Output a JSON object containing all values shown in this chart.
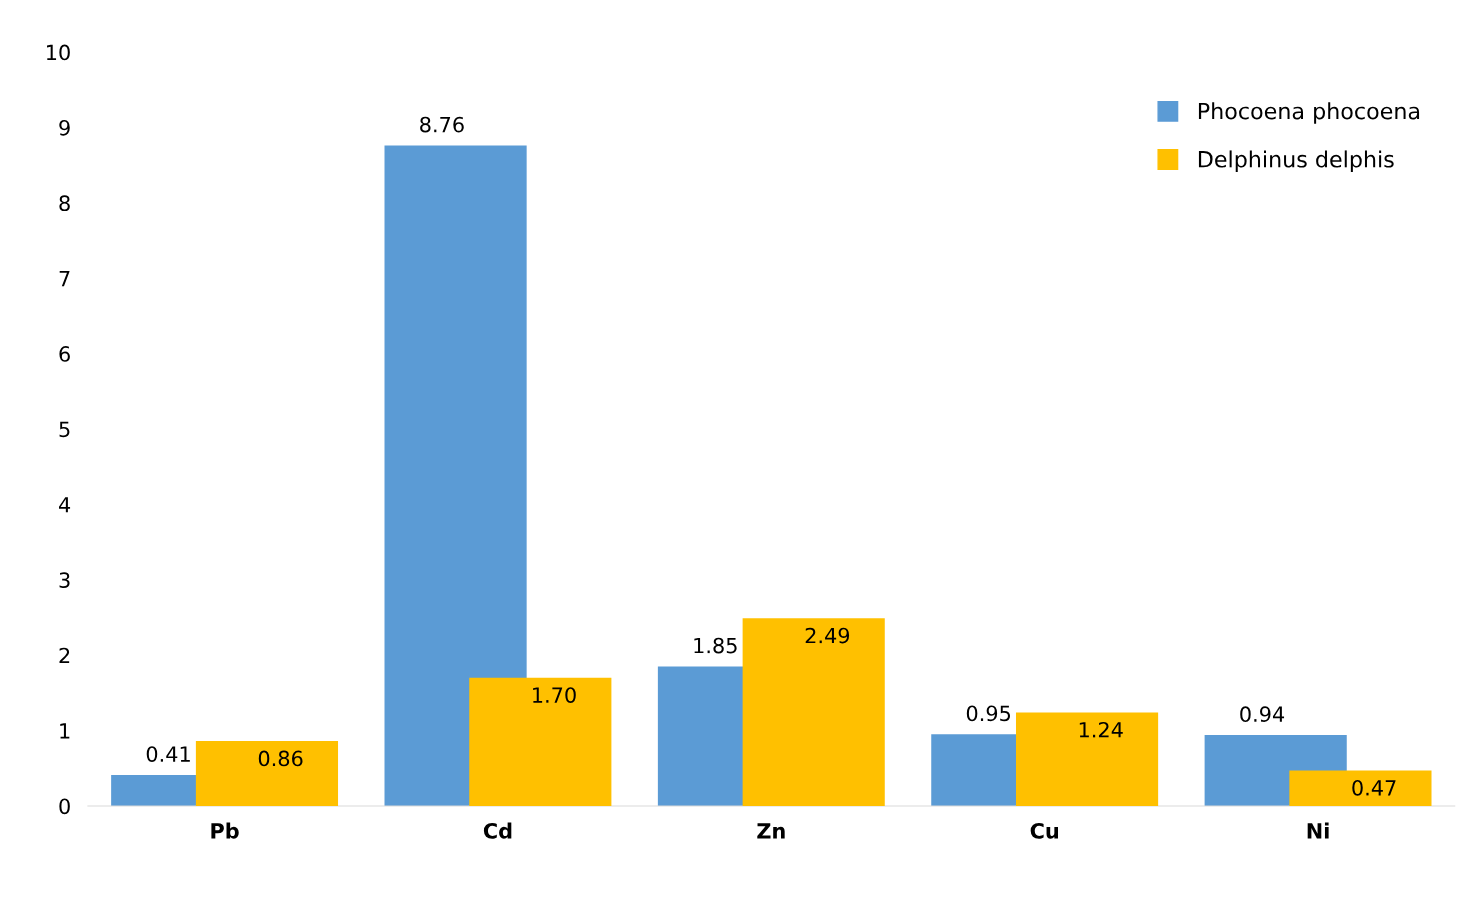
{
  "chart_data": {
    "type": "bar",
    "categories": [
      "Pb",
      "Cd",
      "Zn",
      "Cu",
      "Ni"
    ],
    "series": [
      {
        "name": "Phocoena phocoena",
        "color": "#5b9bd5",
        "values": [
          0.41,
          8.76,
          1.85,
          0.95,
          0.94
        ],
        "value_labels": [
          "0.41",
          "8.76",
          "1.85",
          "0.95",
          "0.94"
        ]
      },
      {
        "name": "Delphinus delphis",
        "color": "#ffc000",
        "values": [
          0.86,
          1.7,
          2.49,
          1.24,
          0.47
        ],
        "value_labels": [
          "0.86",
          "1.70",
          "2.49",
          "1.24",
          "0.47"
        ]
      }
    ],
    "ylim": [
      0,
      10
    ],
    "yticks": [
      0,
      1,
      2,
      3,
      4,
      5,
      6,
      7,
      8,
      9,
      10
    ],
    "grid": false,
    "legend": "top right"
  }
}
